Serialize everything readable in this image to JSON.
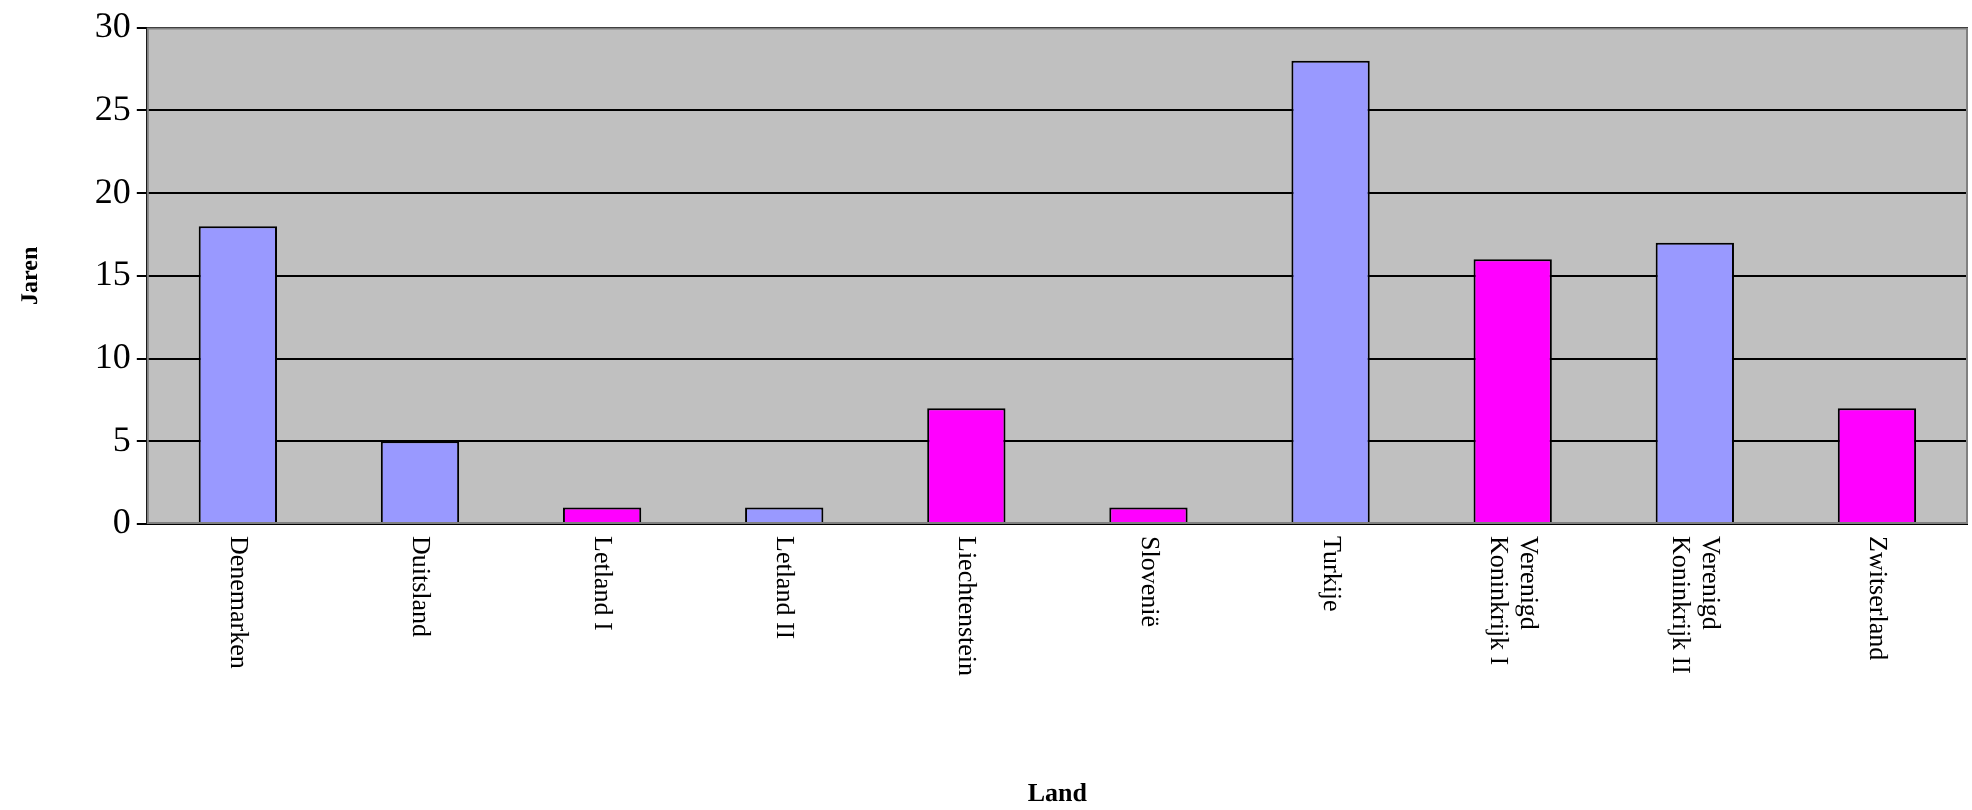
{
  "chart_data": {
    "type": "bar",
    "xlabel": "Land",
    "ylabel": "Jaren",
    "categories": [
      "Denemarken",
      "Duitsland",
      "Letland I",
      "Letland II",
      "Liechtenstein",
      "Slovenië",
      "Turkije",
      "Verenigd Koninkrijk I",
      "Verenigd Koninkrijk II",
      "Zwitserland"
    ],
    "values": [
      18,
      5,
      1,
      1,
      7,
      1,
      28,
      16,
      17,
      7
    ],
    "colors": [
      "#9999ff",
      "#9999ff",
      "#ff00ff",
      "#9999ff",
      "#ff00ff",
      "#ff00ff",
      "#9999ff",
      "#ff00ff",
      "#9999ff",
      "#ff00ff"
    ],
    "ylim": [
      0,
      30
    ],
    "yticks": [
      0,
      5,
      10,
      15,
      20,
      25,
      30
    ],
    "grid": "y",
    "legend": false
  }
}
